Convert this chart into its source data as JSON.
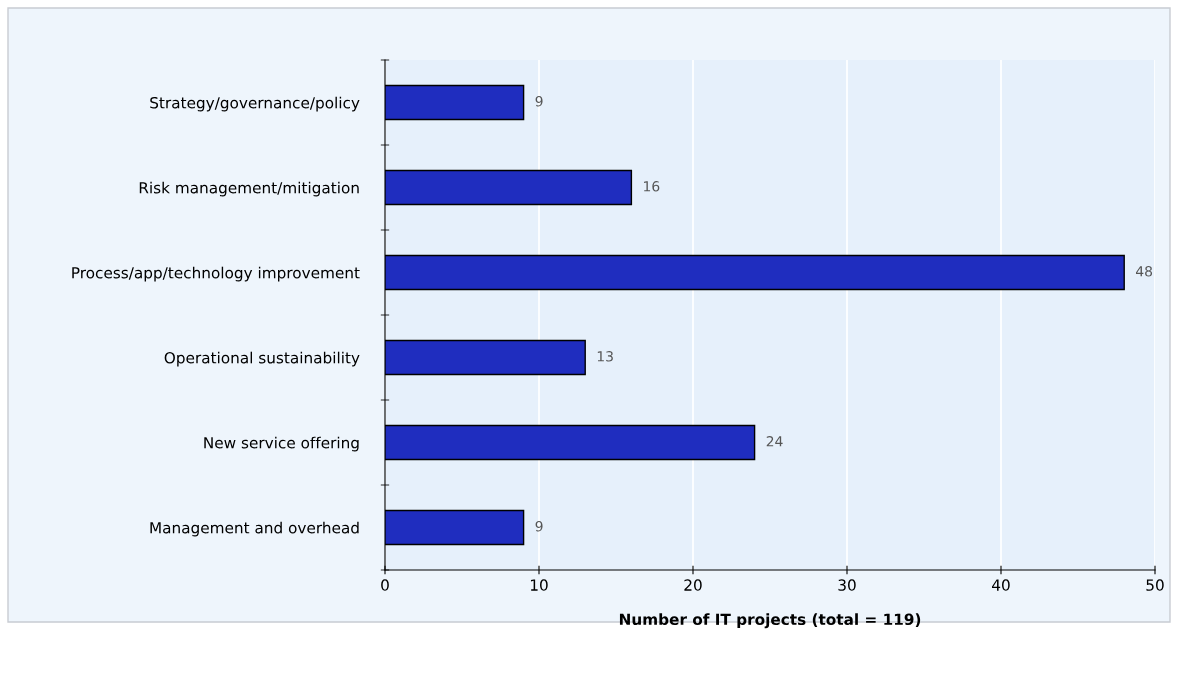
{
  "chart_data": {
    "type": "bar",
    "orientation": "horizontal",
    "xlabel": "Number of IT projects (total = 119)",
    "categories": [
      "Strategy/governance/policy",
      "Risk management/mitigation",
      "Process/app/technology improvement",
      "Operational sustainability",
      "New service offering",
      "Management and overhead"
    ],
    "values": [
      9,
      16,
      48,
      13,
      24,
      9
    ],
    "color": "#1f2dbf",
    "xlim": [
      0,
      50
    ],
    "xticks": [
      0,
      10,
      20,
      30,
      40,
      50
    ],
    "grid": "x",
    "data_labels": true
  }
}
